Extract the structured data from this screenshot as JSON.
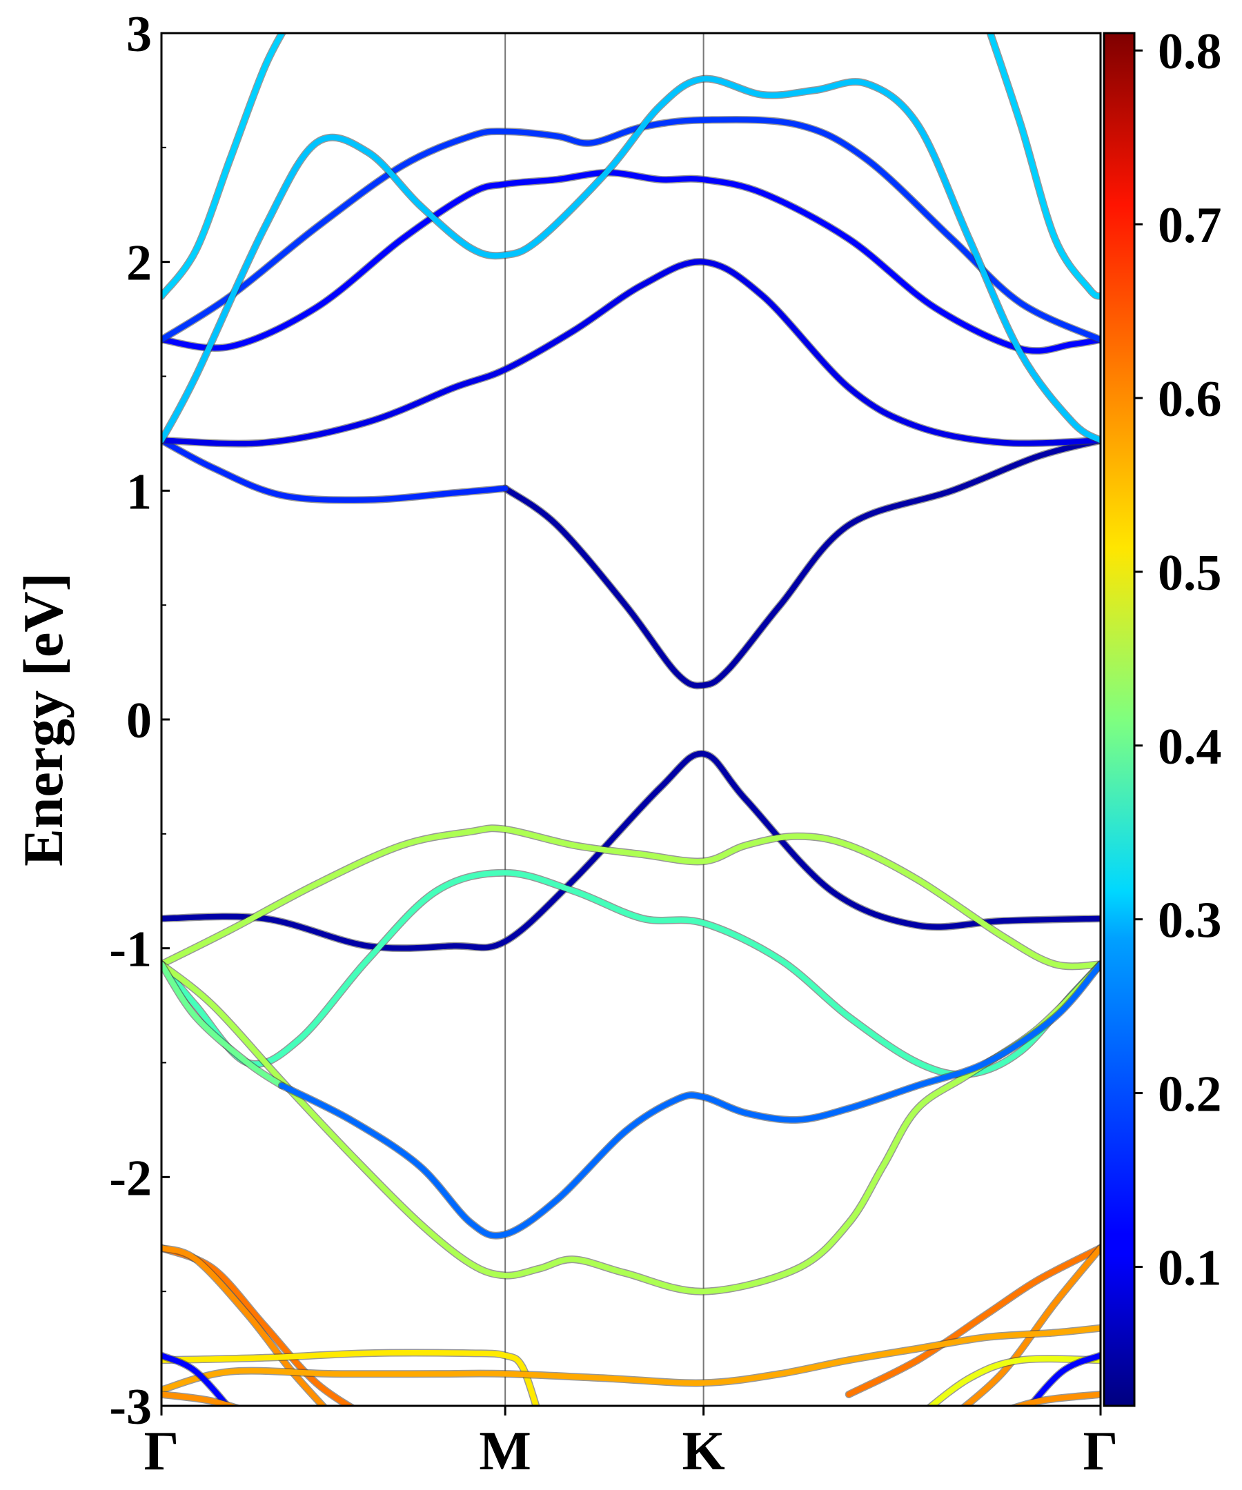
{
  "chart_data": {
    "type": "line",
    "title": "",
    "xlabel": "",
    "ylabel": "Energy [eV]",
    "ylim": [
      -3,
      3
    ],
    "x_ticks": [
      {
        "label": "Γ",
        "x": 0
      },
      {
        "label": "M",
        "x": 1.0
      },
      {
        "label": "K",
        "x": 1.577
      },
      {
        "label": "Γ",
        "x": 2.732
      }
    ],
    "y_ticks": [
      "3",
      "2",
      "1",
      "0",
      "-1",
      "-2",
      "-3"
    ],
    "y_tick_values": [
      3,
      2,
      1,
      0,
      -1,
      -2,
      -3
    ],
    "colorbar": {
      "colormap": "jet",
      "range": [
        0.02,
        0.81
      ],
      "ticks": [
        "0.8",
        "0.7",
        "0.6",
        "0.5",
        "0.4",
        "0.3",
        "0.2",
        "0.1"
      ],
      "tick_values": [
        0.8,
        0.7,
        0.6,
        0.5,
        0.4,
        0.3,
        0.2,
        0.1
      ]
    },
    "series": [
      {
        "color_value": 0.05,
        "points": [
          [
            0,
            -0.87
          ],
          [
            0.3,
            -0.87
          ],
          [
            0.6,
            -0.99
          ],
          [
            0.85,
            -0.99
          ],
          [
            1.0,
            -0.97
          ],
          [
            1.2,
            -0.7
          ],
          [
            1.45,
            -0.3
          ],
          [
            1.577,
            -0.15
          ],
          [
            1.7,
            -0.35
          ],
          [
            1.95,
            -0.75
          ],
          [
            2.2,
            -0.9
          ],
          [
            2.45,
            -0.88
          ],
          [
            2.732,
            -0.87
          ]
        ]
      },
      {
        "color_value": 0.05,
        "points": [
          [
            1.0,
            1.01
          ],
          [
            1.15,
            0.85
          ],
          [
            1.35,
            0.5
          ],
          [
            1.5,
            0.2
          ],
          [
            1.577,
            0.15
          ],
          [
            1.65,
            0.22
          ],
          [
            1.8,
            0.5
          ],
          [
            2.0,
            0.85
          ],
          [
            2.3,
            1.0
          ],
          [
            2.55,
            1.15
          ],
          [
            2.732,
            1.22
          ]
        ]
      },
      {
        "color_value": 0.15,
        "points": [
          [
            0,
            1.22
          ],
          [
            0.15,
            1.1
          ],
          [
            0.35,
            0.98
          ],
          [
            0.6,
            0.96
          ],
          [
            0.85,
            0.99
          ],
          [
            1.0,
            1.01
          ]
        ]
      },
      {
        "color_value": 0.1,
        "points": [
          [
            0,
            1.22
          ],
          [
            0.3,
            1.21
          ],
          [
            0.6,
            1.3
          ],
          [
            0.85,
            1.45
          ],
          [
            1.0,
            1.53
          ],
          [
            1.2,
            1.7
          ],
          [
            1.4,
            1.9
          ],
          [
            1.577,
            2.0
          ],
          [
            1.75,
            1.85
          ],
          [
            2.0,
            1.45
          ],
          [
            2.2,
            1.28
          ],
          [
            2.45,
            1.21
          ],
          [
            2.732,
            1.22
          ]
        ]
      },
      {
        "color_value": 0.12,
        "points": [
          [
            0,
            1.66
          ],
          [
            0.2,
            1.63
          ],
          [
            0.45,
            1.8
          ],
          [
            0.7,
            2.1
          ],
          [
            0.9,
            2.3
          ],
          [
            1.0,
            2.34
          ],
          [
            1.15,
            2.36
          ],
          [
            1.3,
            2.39
          ],
          [
            1.45,
            2.36
          ],
          [
            1.577,
            2.36
          ],
          [
            1.75,
            2.3
          ],
          [
            2.0,
            2.1
          ],
          [
            2.25,
            1.8
          ],
          [
            2.5,
            1.62
          ],
          [
            2.65,
            1.64
          ],
          [
            2.732,
            1.66
          ]
        ]
      },
      {
        "color_value": 0.16,
        "points": [
          [
            0,
            1.66
          ],
          [
            0.2,
            1.85
          ],
          [
            0.45,
            2.15
          ],
          [
            0.7,
            2.42
          ],
          [
            0.9,
            2.55
          ],
          [
            1.0,
            2.57
          ],
          [
            1.15,
            2.55
          ],
          [
            1.25,
            2.52
          ],
          [
            1.4,
            2.59
          ],
          [
            1.577,
            2.62
          ],
          [
            1.85,
            2.6
          ],
          [
            2.05,
            2.45
          ],
          [
            2.3,
            2.1
          ],
          [
            2.5,
            1.82
          ],
          [
            2.732,
            1.66
          ]
        ]
      },
      {
        "color_value": 0.27,
        "points": [
          [
            0,
            1.22
          ],
          [
            0.1,
            1.5
          ],
          [
            0.3,
            2.15
          ],
          [
            0.45,
            2.52
          ],
          [
            0.6,
            2.48
          ],
          [
            0.75,
            2.25
          ],
          [
            0.9,
            2.06
          ],
          [
            1.0,
            2.03
          ],
          [
            1.1,
            2.1
          ],
          [
            1.3,
            2.4
          ],
          [
            1.45,
            2.68
          ],
          [
            1.577,
            2.8
          ],
          [
            1.75,
            2.73
          ],
          [
            1.9,
            2.75
          ],
          [
            2.05,
            2.78
          ],
          [
            2.2,
            2.6
          ],
          [
            2.35,
            2.1
          ],
          [
            2.5,
            1.6
          ],
          [
            2.65,
            1.3
          ],
          [
            2.732,
            1.22
          ]
        ]
      },
      {
        "color_value": 0.28,
        "points": [
          [
            0,
            1.85
          ],
          [
            0.1,
            2.05
          ],
          [
            0.2,
            2.45
          ],
          [
            0.3,
            2.85
          ],
          [
            0.37,
            3.05
          ]
        ]
      },
      {
        "color_value": 0.28,
        "points": [
          [
            2.4,
            3.05
          ],
          [
            2.5,
            2.6
          ],
          [
            2.6,
            2.1
          ],
          [
            2.7,
            1.88
          ],
          [
            2.732,
            1.85
          ]
        ]
      },
      {
        "color_value": 0.45,
        "points": [
          [
            0,
            -1.07
          ],
          [
            0.2,
            -0.92
          ],
          [
            0.45,
            -0.72
          ],
          [
            0.7,
            -0.55
          ],
          [
            0.9,
            -0.49
          ],
          [
            1.0,
            -0.48
          ],
          [
            1.2,
            -0.55
          ],
          [
            1.4,
            -0.59
          ],
          [
            1.577,
            -0.62
          ],
          [
            1.7,
            -0.55
          ],
          [
            1.85,
            -0.51
          ],
          [
            2.0,
            -0.55
          ],
          [
            2.2,
            -0.7
          ],
          [
            2.45,
            -0.95
          ],
          [
            2.6,
            -1.07
          ],
          [
            2.732,
            -1.07
          ]
        ]
      },
      {
        "color_value": 0.37,
        "points": [
          [
            0,
            -1.07
          ],
          [
            0.1,
            -1.25
          ],
          [
            0.25,
            -1.5
          ],
          [
            0.4,
            -1.4
          ],
          [
            0.6,
            -1.05
          ],
          [
            0.8,
            -0.75
          ],
          [
            1.0,
            -0.67
          ],
          [
            1.2,
            -0.75
          ],
          [
            1.4,
            -0.87
          ],
          [
            1.577,
            -0.89
          ],
          [
            1.8,
            -1.05
          ],
          [
            2.0,
            -1.3
          ],
          [
            2.2,
            -1.5
          ],
          [
            2.35,
            -1.55
          ],
          [
            2.5,
            -1.45
          ],
          [
            2.65,
            -1.2
          ],
          [
            2.732,
            -1.07
          ]
        ]
      },
      {
        "color_value": 0.45,
        "points": [
          [
            0,
            -1.07
          ],
          [
            0.15,
            -1.25
          ],
          [
            0.35,
            -1.58
          ],
          [
            0.55,
            -1.9
          ],
          [
            0.75,
            -2.2
          ],
          [
            0.9,
            -2.38
          ],
          [
            1.0,
            -2.43
          ],
          [
            1.1,
            -2.4
          ],
          [
            1.2,
            -2.36
          ],
          [
            1.35,
            -2.42
          ],
          [
            1.577,
            -2.5
          ],
          [
            1.85,
            -2.4
          ],
          [
            2.0,
            -2.2
          ],
          [
            2.1,
            -1.95
          ],
          [
            2.2,
            -1.7
          ],
          [
            2.35,
            -1.55
          ],
          [
            2.55,
            -1.35
          ],
          [
            2.732,
            -1.07
          ]
        ]
      },
      {
        "color_value": 0.4,
        "points": [
          [
            0,
            -1.07
          ],
          [
            0.1,
            -1.3
          ],
          [
            0.25,
            -1.5
          ],
          [
            0.35,
            -1.6
          ]
        ]
      },
      {
        "color_value": 0.2,
        "points": [
          [
            0.35,
            -1.6
          ],
          [
            0.55,
            -1.75
          ],
          [
            0.75,
            -1.95
          ],
          [
            0.9,
            -2.2
          ],
          [
            1.0,
            -2.25
          ],
          [
            1.15,
            -2.1
          ],
          [
            1.35,
            -1.8
          ],
          [
            1.5,
            -1.66
          ],
          [
            1.577,
            -1.65
          ],
          [
            1.7,
            -1.72
          ],
          [
            1.85,
            -1.75
          ],
          [
            2.0,
            -1.7
          ],
          [
            2.2,
            -1.6
          ],
          [
            2.4,
            -1.5
          ],
          [
            2.6,
            -1.3
          ],
          [
            2.732,
            -1.07
          ]
        ]
      },
      {
        "color_value": 0.62,
        "points": [
          [
            0,
            -2.31
          ],
          [
            0.15,
            -2.4
          ],
          [
            0.3,
            -2.65
          ],
          [
            0.45,
            -2.9
          ],
          [
            0.6,
            -3.05
          ]
        ]
      },
      {
        "color_value": 0.6,
        "points": [
          [
            0,
            -2.31
          ],
          [
            0.1,
            -2.36
          ],
          [
            0.25,
            -2.6
          ],
          [
            0.38,
            -2.85
          ],
          [
            0.5,
            -3.05
          ]
        ]
      },
      {
        "color_value": 0.62,
        "points": [
          [
            2.0,
            -2.95
          ],
          [
            2.2,
            -2.8
          ],
          [
            2.4,
            -2.6
          ],
          [
            2.55,
            -2.45
          ],
          [
            2.732,
            -2.31
          ]
        ]
      },
      {
        "color_value": 0.6,
        "points": [
          [
            2.3,
            -3.05
          ],
          [
            2.45,
            -2.85
          ],
          [
            2.6,
            -2.55
          ],
          [
            2.732,
            -2.31
          ]
        ]
      },
      {
        "color_value": 0.53,
        "points": [
          [
            0,
            -2.8
          ],
          [
            0.3,
            -2.79
          ],
          [
            0.6,
            -2.77
          ],
          [
            0.9,
            -2.77
          ],
          [
            1.0,
            -2.78
          ],
          [
            1.05,
            -2.83
          ],
          [
            1.1,
            -3.05
          ]
        ]
      },
      {
        "color_value": 0.58,
        "points": [
          [
            0,
            -2.93
          ],
          [
            0.2,
            -2.85
          ],
          [
            0.5,
            -2.86
          ],
          [
            0.8,
            -2.86
          ],
          [
            1.0,
            -2.86
          ],
          [
            1.3,
            -2.88
          ],
          [
            1.577,
            -2.9
          ],
          [
            1.8,
            -2.86
          ],
          [
            2.0,
            -2.8
          ],
          [
            2.2,
            -2.75
          ],
          [
            2.4,
            -2.7
          ],
          [
            2.6,
            -2.68
          ],
          [
            2.732,
            -2.66
          ]
        ]
      },
      {
        "color_value": 0.5,
        "points": [
          [
            2.2,
            -3.05
          ],
          [
            2.35,
            -2.88
          ],
          [
            2.5,
            -2.8
          ],
          [
            2.732,
            -2.8
          ]
        ]
      },
      {
        "color_value": 0.12,
        "points": [
          [
            0,
            -2.78
          ],
          [
            0.1,
            -2.85
          ],
          [
            0.22,
            -3.05
          ]
        ]
      },
      {
        "color_value": 0.12,
        "points": [
          [
            2.5,
            -3.05
          ],
          [
            2.62,
            -2.85
          ],
          [
            2.732,
            -2.78
          ]
        ]
      },
      {
        "color_value": 0.6,
        "points": [
          [
            0,
            -2.95
          ],
          [
            0.15,
            -2.98
          ],
          [
            0.3,
            -3.05
          ]
        ]
      },
      {
        "color_value": 0.6,
        "points": [
          [
            2.4,
            -3.05
          ],
          [
            2.55,
            -2.98
          ],
          [
            2.732,
            -2.95
          ]
        ]
      }
    ]
  }
}
